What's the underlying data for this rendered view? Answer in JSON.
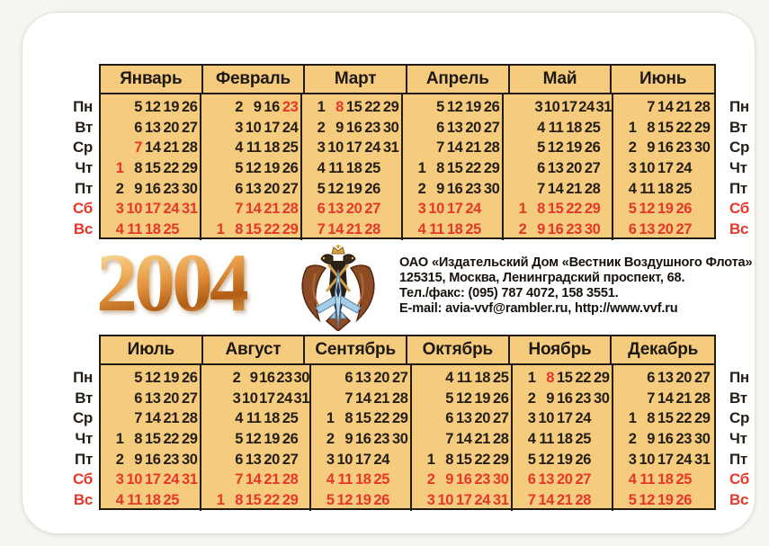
{
  "year": "2004",
  "colors": {
    "cell_background": "#f5cc7e",
    "grid_border": "#211b12",
    "day_black": "#241e16",
    "holiday_red": "#e5372a",
    "year_gold": "#d98a33"
  },
  "weekday_labels": [
    {
      "label": "Пн",
      "red": false
    },
    {
      "label": "Вт",
      "red": false
    },
    {
      "label": "Ср",
      "red": false
    },
    {
      "label": "Чт",
      "red": false
    },
    {
      "label": "Пт",
      "red": false
    },
    {
      "label": "Сб",
      "red": true
    },
    {
      "label": "Вс",
      "red": true
    }
  ],
  "halves": [
    {
      "months": [
        {
          "name": "Январь",
          "extra_red": [
            1,
            7
          ],
          "rows": [
            {
              "pad": 1,
              "days": [
                5,
                12,
                19,
                26
              ]
            },
            {
              "pad": 1,
              "days": [
                6,
                13,
                20,
                27
              ]
            },
            {
              "pad": 1,
              "days": [
                7,
                14,
                21,
                28
              ]
            },
            {
              "pad": 0,
              "days": [
                1,
                8,
                15,
                22,
                29
              ]
            },
            {
              "pad": 0,
              "days": [
                2,
                9,
                16,
                23,
                30
              ]
            },
            {
              "pad": 0,
              "days": [
                3,
                10,
                17,
                24,
                31
              ]
            },
            {
              "pad": 0,
              "days": [
                4,
                11,
                18,
                25
              ]
            }
          ]
        },
        {
          "name": "Февраль",
          "extra_red": [
            23
          ],
          "rows": [
            {
              "pad": 1,
              "days": [
                2,
                9,
                16,
                23
              ]
            },
            {
              "pad": 1,
              "days": [
                3,
                10,
                17,
                24
              ]
            },
            {
              "pad": 1,
              "days": [
                4,
                11,
                18,
                25
              ]
            },
            {
              "pad": 1,
              "days": [
                5,
                12,
                19,
                26
              ]
            },
            {
              "pad": 1,
              "days": [
                6,
                13,
                20,
                27
              ]
            },
            {
              "pad": 1,
              "days": [
                7,
                14,
                21,
                28
              ]
            },
            {
              "pad": 0,
              "days": [
                1,
                8,
                15,
                22,
                29
              ]
            }
          ]
        },
        {
          "name": "Март",
          "extra_red": [
            8
          ],
          "rows": [
            {
              "pad": 0,
              "days": [
                1,
                8,
                15,
                22,
                29
              ]
            },
            {
              "pad": 0,
              "days": [
                2,
                9,
                16,
                23,
                30
              ]
            },
            {
              "pad": 0,
              "days": [
                3,
                10,
                17,
                24,
                31
              ]
            },
            {
              "pad": 0,
              "days": [
                4,
                11,
                18,
                25
              ]
            },
            {
              "pad": 0,
              "days": [
                5,
                12,
                19,
                26
              ]
            },
            {
              "pad": 0,
              "days": [
                6,
                13,
                20,
                27
              ]
            },
            {
              "pad": 0,
              "days": [
                7,
                14,
                21,
                28
              ]
            }
          ]
        },
        {
          "name": "Апрель",
          "extra_red": [],
          "rows": [
            {
              "pad": 1,
              "days": [
                5,
                12,
                19,
                26
              ]
            },
            {
              "pad": 1,
              "days": [
                6,
                13,
                20,
                27
              ]
            },
            {
              "pad": 1,
              "days": [
                7,
                14,
                21,
                28
              ]
            },
            {
              "pad": 0,
              "days": [
                1,
                8,
                15,
                22,
                29
              ]
            },
            {
              "pad": 0,
              "days": [
                2,
                9,
                16,
                23,
                30
              ]
            },
            {
              "pad": 0,
              "days": [
                3,
                10,
                17,
                24
              ]
            },
            {
              "pad": 0,
              "days": [
                4,
                11,
                18,
                25
              ]
            }
          ]
        },
        {
          "name": "Май",
          "extra_red": [],
          "rows": [
            {
              "pad": 1,
              "days": [
                3,
                10,
                17,
                24,
                31
              ]
            },
            {
              "pad": 1,
              "days": [
                4,
                11,
                18,
                25
              ]
            },
            {
              "pad": 1,
              "days": [
                5,
                12,
                19,
                26
              ]
            },
            {
              "pad": 1,
              "days": [
                6,
                13,
                20,
                27
              ]
            },
            {
              "pad": 1,
              "days": [
                7,
                14,
                21,
                28
              ]
            },
            {
              "pad": 0,
              "days": [
                1,
                8,
                15,
                22,
                29
              ]
            },
            {
              "pad": 0,
              "days": [
                2,
                9,
                16,
                23,
                30
              ]
            }
          ]
        },
        {
          "name": "Июнь",
          "extra_red": [],
          "rows": [
            {
              "pad": 1,
              "days": [
                7,
                14,
                21,
                28
              ]
            },
            {
              "pad": 0,
              "days": [
                1,
                8,
                15,
                22,
                29
              ]
            },
            {
              "pad": 0,
              "days": [
                2,
                9,
                16,
                23,
                30
              ]
            },
            {
              "pad": 0,
              "days": [
                3,
                10,
                17,
                24
              ]
            },
            {
              "pad": 0,
              "days": [
                4,
                11,
                18,
                25
              ]
            },
            {
              "pad": 0,
              "days": [
                5,
                12,
                19,
                26
              ]
            },
            {
              "pad": 0,
              "days": [
                6,
                13,
                20,
                27
              ]
            }
          ]
        }
      ]
    },
    {
      "months": [
        {
          "name": "Июль",
          "extra_red": [],
          "rows": [
            {
              "pad": 1,
              "days": [
                5,
                12,
                19,
                26
              ]
            },
            {
              "pad": 1,
              "days": [
                6,
                13,
                20,
                27
              ]
            },
            {
              "pad": 1,
              "days": [
                7,
                14,
                21,
                28
              ]
            },
            {
              "pad": 0,
              "days": [
                1,
                8,
                15,
                22,
                29
              ]
            },
            {
              "pad": 0,
              "days": [
                2,
                9,
                16,
                23,
                30
              ]
            },
            {
              "pad": 0,
              "days": [
                3,
                10,
                17,
                24,
                31
              ]
            },
            {
              "pad": 0,
              "days": [
                4,
                11,
                18,
                25
              ]
            }
          ]
        },
        {
          "name": "Август",
          "extra_red": [],
          "rows": [
            {
              "pad": 1,
              "days": [
                2,
                9,
                16,
                23,
                30
              ]
            },
            {
              "pad": 1,
              "days": [
                3,
                10,
                17,
                24,
                31
              ]
            },
            {
              "pad": 1,
              "days": [
                4,
                11,
                18,
                25
              ]
            },
            {
              "pad": 1,
              "days": [
                5,
                12,
                19,
                26
              ]
            },
            {
              "pad": 1,
              "days": [
                6,
                13,
                20,
                27
              ]
            },
            {
              "pad": 1,
              "days": [
                7,
                14,
                21,
                28
              ]
            },
            {
              "pad": 0,
              "days": [
                1,
                8,
                15,
                22,
                29
              ]
            }
          ]
        },
        {
          "name": "Сентябрь",
          "extra_red": [],
          "rows": [
            {
              "pad": 1,
              "days": [
                6,
                13,
                20,
                27
              ]
            },
            {
              "pad": 1,
              "days": [
                7,
                14,
                21,
                28
              ]
            },
            {
              "pad": 0,
              "days": [
                1,
                8,
                15,
                22,
                29
              ]
            },
            {
              "pad": 0,
              "days": [
                2,
                9,
                16,
                23,
                30
              ]
            },
            {
              "pad": 0,
              "days": [
                3,
                10,
                17,
                24
              ]
            },
            {
              "pad": 0,
              "days": [
                4,
                11,
                18,
                25
              ]
            },
            {
              "pad": 0,
              "days": [
                5,
                12,
                19,
                26
              ]
            }
          ]
        },
        {
          "name": "Октябрь",
          "extra_red": [],
          "rows": [
            {
              "pad": 1,
              "days": [
                4,
                11,
                18,
                25
              ]
            },
            {
              "pad": 1,
              "days": [
                5,
                12,
                19,
                26
              ]
            },
            {
              "pad": 1,
              "days": [
                6,
                13,
                20,
                27
              ]
            },
            {
              "pad": 1,
              "days": [
                7,
                14,
                21,
                28
              ]
            },
            {
              "pad": 0,
              "days": [
                1,
                8,
                15,
                22,
                29
              ]
            },
            {
              "pad": 0,
              "days": [
                2,
                9,
                16,
                23,
                30
              ]
            },
            {
              "pad": 0,
              "days": [
                3,
                10,
                17,
                24,
                31
              ]
            }
          ]
        },
        {
          "name": "Ноябрь",
          "extra_red": [
            8
          ],
          "rows": [
            {
              "pad": 0,
              "days": [
                1,
                8,
                15,
                22,
                29
              ]
            },
            {
              "pad": 0,
              "days": [
                2,
                9,
                16,
                23,
                30
              ]
            },
            {
              "pad": 0,
              "days": [
                3,
                10,
                17,
                24
              ]
            },
            {
              "pad": 0,
              "days": [
                4,
                11,
                18,
                25
              ]
            },
            {
              "pad": 0,
              "days": [
                5,
                12,
                19,
                26
              ]
            },
            {
              "pad": 0,
              "days": [
                6,
                13,
                20,
                27
              ]
            },
            {
              "pad": 0,
              "days": [
                7,
                14,
                21,
                28
              ]
            }
          ]
        },
        {
          "name": "Декабрь",
          "extra_red": [],
          "rows": [
            {
              "pad": 1,
              "days": [
                6,
                13,
                20,
                27
              ]
            },
            {
              "pad": 1,
              "days": [
                7,
                14,
                21,
                28
              ]
            },
            {
              "pad": 0,
              "days": [
                1,
                8,
                15,
                22,
                29
              ]
            },
            {
              "pad": 0,
              "days": [
                2,
                9,
                16,
                23,
                30
              ]
            },
            {
              "pad": 0,
              "days": [
                3,
                10,
                17,
                24,
                31
              ]
            },
            {
              "pad": 0,
              "days": [
                4,
                11,
                18,
                25
              ]
            },
            {
              "pad": 0,
              "days": [
                5,
                12,
                19,
                26
              ]
            }
          ]
        }
      ]
    }
  ],
  "publisher": {
    "line1": "ОАО «Издательский Дом «Вестник Воздушного Флота»",
    "line2": "125315, Москва, Ленинградский проспект, 68.",
    "line3": "Тел./факс: (095) 787 4072, 158 3551.",
    "line4": "E-mail: avia-vvf@rambler.ru, http://www.vvf.ru"
  },
  "emblem": {
    "name": "double-headed-eagle-with-jet-emblem"
  }
}
